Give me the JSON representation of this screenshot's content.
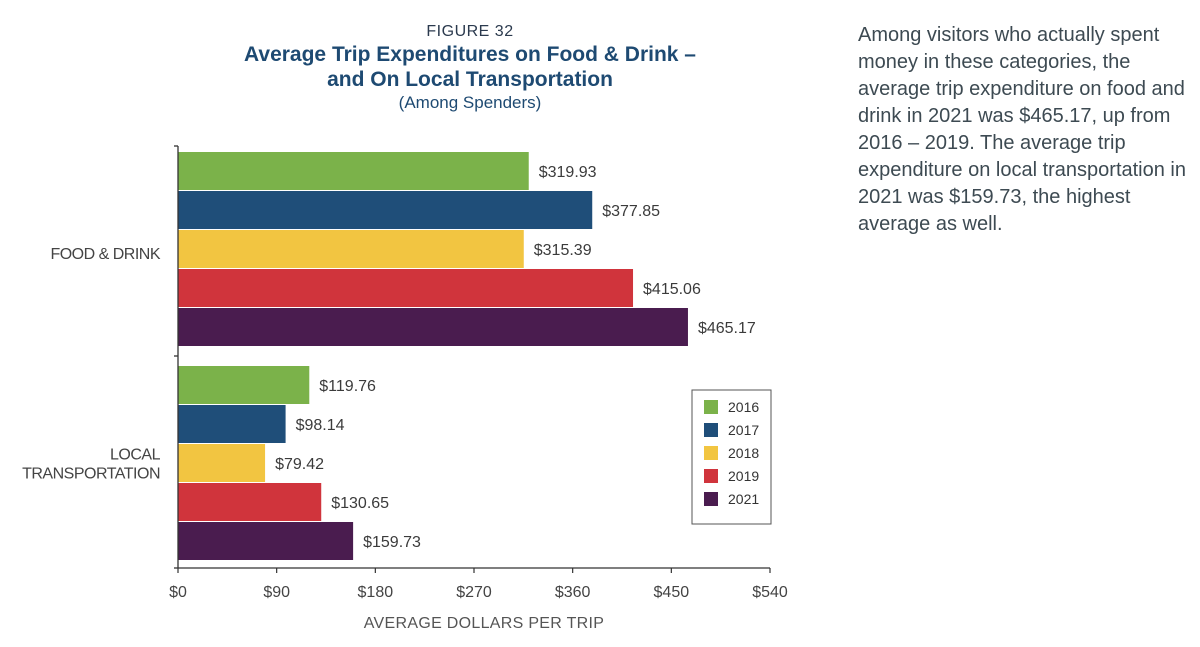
{
  "chart_data": {
    "type": "bar",
    "orientation": "horizontal",
    "figure_label": "FIGURE 32",
    "title_line1": "Average Trip Expenditures on Food & Drink –",
    "title_line2": "and On Local Transportation",
    "subtitle": "(Among Spenders)",
    "categories": [
      "FOOD & DRINK",
      "LOCAL TRANSPORTATION"
    ],
    "category_lines": [
      [
        "FOOD & DRINK"
      ],
      [
        "LOCAL",
        "TRANSPORTATION"
      ]
    ],
    "series": [
      {
        "name": "2016",
        "color": "#7bb24a",
        "values": [
          319.93,
          119.76
        ],
        "labels": [
          "$319.93",
          "$119.76"
        ]
      },
      {
        "name": "2017",
        "color": "#1f4e79",
        "values": [
          377.85,
          98.14
        ],
        "labels": [
          "$377.85",
          "$98.14"
        ]
      },
      {
        "name": "2018",
        "color": "#f2c541",
        "values": [
          315.39,
          79.42
        ],
        "labels": [
          "$315.39",
          "$79.42"
        ]
      },
      {
        "name": "2019",
        "color": "#d0343c",
        "values": [
          415.06,
          130.65
        ],
        "labels": [
          "$415.06",
          "$130.65"
        ]
      },
      {
        "name": "2021",
        "color": "#4a1c4f",
        "values": [
          465.17,
          159.73
        ],
        "labels": [
          "$465.17",
          "$159.73"
        ]
      }
    ],
    "xlim": [
      0,
      540
    ],
    "xticks": [
      0,
      90,
      180,
      270,
      360,
      450,
      540
    ],
    "xtick_labels": [
      "$0",
      "$90",
      "$180",
      "$270",
      "$360",
      "$450",
      "$540"
    ],
    "xlabel": "AVERAGE DOLLARS PER TRIP",
    "ylabel": "",
    "grid": false,
    "legend_position": "right-lower"
  },
  "side_text": "Among visitors who actually spent money in these categories, the average trip expenditure on food and drink in 2021 was $465.17, up from 2016 – 2019. The average trip expenditure on local transportation in 2021 was $159.73, the highest average as well."
}
